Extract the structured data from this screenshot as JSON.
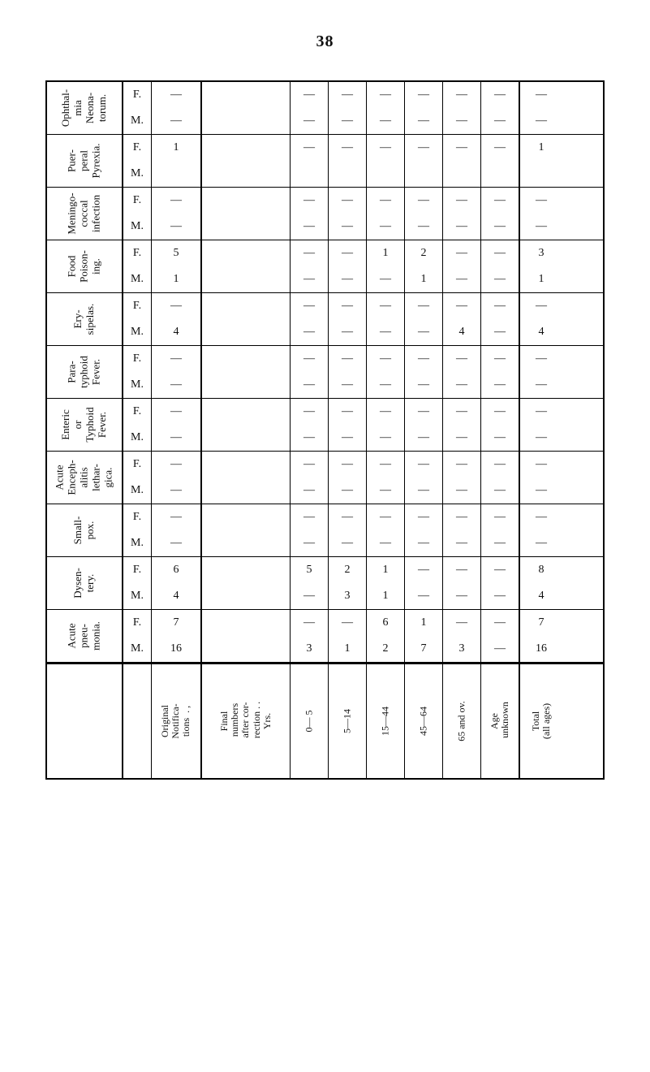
{
  "page_number": "38",
  "diseases": [
    {
      "key": "ophthalmia",
      "label": "Ophthal-\nmia\nNeona-\ntorum."
    },
    {
      "key": "puerperal",
      "label": "Puer-\nperal\nPyrexia."
    },
    {
      "key": "meningo",
      "label": "Meningo-\ncoccal\ninfection"
    },
    {
      "key": "food",
      "label": "Food\nPoison-\ning."
    },
    {
      "key": "erysipelas",
      "label": "Ery-\nsipelas."
    },
    {
      "key": "paratyphoid",
      "label": "Para-\ntyphoid\nFever."
    },
    {
      "key": "enteric",
      "label": "Enteric\nor\nTyphoid\nFever."
    },
    {
      "key": "encephalitis",
      "label": "Acute\nEnceph-\nalitis\nlethar-\ngica."
    },
    {
      "key": "smallpox",
      "label": "Small-\npox."
    },
    {
      "key": "dysentery",
      "label": "Dysen-\ntery."
    },
    {
      "key": "pneumonia",
      "label": "Acute\npneu-\nmonia."
    }
  ],
  "sex_rows": {
    "F": "F.",
    "M": "M."
  },
  "columns": {
    "orig": "Original\nNotifica-\ntions  . ,",
    "pad": "Final\n numbers\n after cor-\n rection . .",
    "yrs": "Yrs.",
    "age0": "0— 5",
    "age5": "5—14",
    "age15": "15—44",
    "age45": "45—64",
    "age65": "65 and ov.",
    "unk": "Age\n unknown",
    "tot": "Total\n(all ages)"
  },
  "dash": "—",
  "values": {
    "ophthalmia": {
      "F": {
        "orig": "—",
        "a0": "—",
        "a5": "—",
        "a15": "—",
        "a45": "—",
        "a65": "—",
        "unk": "—",
        "tot": "—"
      },
      "M": {
        "orig": "—",
        "a0": "—",
        "a5": "—",
        "a15": "—",
        "a45": "—",
        "a65": "—",
        "unk": "—",
        "tot": "—"
      }
    },
    "puerperal": {
      "F": {
        "orig": "1",
        "a0": "—",
        "a5": "—",
        "a15": "—",
        "a45": "—",
        "a65": "—",
        "unk": "—",
        "tot": "1"
      },
      "M": {
        "orig": "",
        "a0": "",
        "a5": "",
        "a15": "",
        "a45": "",
        "a65": "",
        "unk": "",
        "tot": ""
      }
    },
    "meningo": {
      "F": {
        "orig": "—",
        "a0": "—",
        "a5": "—",
        "a15": "—",
        "a45": "—",
        "a65": "—",
        "unk": "—",
        "tot": "—"
      },
      "M": {
        "orig": "—",
        "a0": "—",
        "a5": "—",
        "a15": "—",
        "a45": "—",
        "a65": "—",
        "unk": "—",
        "tot": "—"
      }
    },
    "food": {
      "F": {
        "orig": "5",
        "a0": "—",
        "a5": "—",
        "a15": "1",
        "a45": "2",
        "a65": "—",
        "unk": "—",
        "tot": "3"
      },
      "M": {
        "orig": "1",
        "a0": "—",
        "a5": "—",
        "a15": "—",
        "a45": "1",
        "a65": "—",
        "unk": "—",
        "tot": "1"
      }
    },
    "erysipelas": {
      "F": {
        "orig": "—",
        "a0": "—",
        "a5": "—",
        "a15": "—",
        "a45": "—",
        "a65": "—",
        "unk": "—",
        "tot": "—"
      },
      "M": {
        "orig": "4",
        "a0": "—",
        "a5": "—",
        "a15": "—",
        "a45": "—",
        "a65": "4",
        "unk": "—",
        "tot": "4"
      }
    },
    "paratyphoid": {
      "F": {
        "orig": "—",
        "a0": "—",
        "a5": "—",
        "a15": "—",
        "a45": "—",
        "a65": "—",
        "unk": "—",
        "tot": "—"
      },
      "M": {
        "orig": "—",
        "a0": "—",
        "a5": "—",
        "a15": "—",
        "a45": "—",
        "a65": "—",
        "unk": "—",
        "tot": "—"
      }
    },
    "enteric": {
      "F": {
        "orig": "—",
        "a0": "—",
        "a5": "—",
        "a15": "—",
        "a45": "—",
        "a65": "—",
        "unk": "—",
        "tot": "—"
      },
      "M": {
        "orig": "—",
        "a0": "—",
        "a5": "—",
        "a15": "—",
        "a45": "—",
        "a65": "—",
        "unk": "—",
        "tot": "—"
      }
    },
    "encephalitis": {
      "F": {
        "orig": "—",
        "a0": "—",
        "a5": "—",
        "a15": "—",
        "a45": "—",
        "a65": "—",
        "unk": "—",
        "tot": "—"
      },
      "M": {
        "orig": "—",
        "a0": "—",
        "a5": "—",
        "a15": "—",
        "a45": "—",
        "a65": "—",
        "unk": "—",
        "tot": "—"
      }
    },
    "smallpox": {
      "F": {
        "orig": "—",
        "a0": "—",
        "a5": "—",
        "a15": "—",
        "a45": "—",
        "a65": "—",
        "unk": "—",
        "tot": "—"
      },
      "M": {
        "orig": "—",
        "a0": "—",
        "a5": "—",
        "a15": "—",
        "a45": "—",
        "a65": "—",
        "unk": "—",
        "tot": "—"
      }
    },
    "dysentery": {
      "F": {
        "orig": "6",
        "a0": "5",
        "a5": "2",
        "a15": "1",
        "a45": "—",
        "a65": "—",
        "unk": "—",
        "tot": "8"
      },
      "M": {
        "orig": "4",
        "a0": "—",
        "a5": "3",
        "a15": "1",
        "a45": "—",
        "a65": "—",
        "unk": "—",
        "tot": "4"
      }
    },
    "pneumonia": {
      "F": {
        "orig": "7",
        "a0": "—",
        "a5": "—",
        "a15": "6",
        "a45": "1",
        "a65": "—",
        "unk": "—",
        "tot": "7"
      },
      "M": {
        "orig": "16",
        "a0": "3",
        "a5": "1",
        "a15": "2",
        "a45": "7",
        "a65": "3",
        "unk": "—",
        "tot": "16"
      }
    }
  }
}
